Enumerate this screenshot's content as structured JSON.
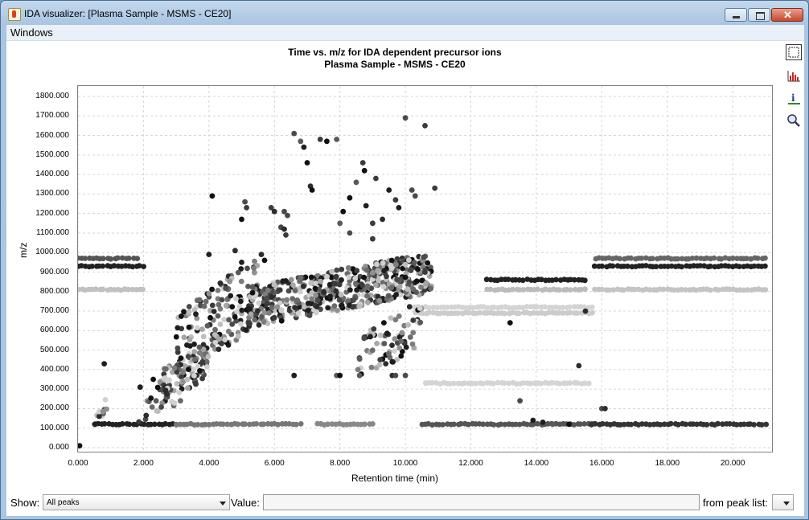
{
  "window": {
    "title": "IDA visualizer: [Plasma Sample - MSMS - CE20]",
    "controls": [
      "minimize",
      "maximize",
      "close"
    ]
  },
  "menu": {
    "items": [
      "Windows"
    ]
  },
  "chart": {
    "title_line1": "Time vs. m/z for IDA dependent precursor ions",
    "title_line2": "Plasma Sample - MSMS - CE20"
  },
  "toolbar": {
    "icons": [
      "select-rectangle-icon",
      "histogram-icon",
      "info-icon",
      "zoom-icon"
    ]
  },
  "bottom": {
    "show_label": "Show:",
    "show_value": "All peaks",
    "value_label": "Value:",
    "value_text": "",
    "from_label": "from peak list:",
    "from_value": ""
  },
  "chart_data": {
    "type": "scatter",
    "title": "Time vs. m/z for IDA dependent precursor ions",
    "subtitle": "Plasma Sample - MSMS - CE20",
    "xlabel": "Retention time (min)",
    "ylabel": "m/z",
    "xlim": [
      0,
      21.2
    ],
    "ylim": [
      0,
      1800
    ],
    "grid": true,
    "xticks": [
      "0.000",
      "2.000",
      "4.000",
      "6.000",
      "8.000",
      "10.000",
      "12.000",
      "14.000",
      "16.000",
      "18.000",
      "20.000"
    ],
    "yticks": [
      "0.000",
      "100.000",
      "200.000",
      "300.000",
      "400.000",
      "500.000",
      "600.000",
      "700.000",
      "800.000",
      "900.000",
      "1000.000",
      "1100.000",
      "1200.000",
      "1300.000",
      "1400.000",
      "1500.000",
      "1600.000",
      "1700.000",
      "1800.000"
    ],
    "bands": [
      {
        "x": [
          0.5,
          3.0
        ],
        "y": 120,
        "shade": "#222222"
      },
      {
        "x": [
          3.0,
          6.8
        ],
        "y": 120,
        "shade": "#777777"
      },
      {
        "x": [
          7.3,
          9.0
        ],
        "y": 120,
        "shade": "#888888"
      },
      {
        "x": [
          10.5,
          15.7
        ],
        "y": 120,
        "shade": "#555555"
      },
      {
        "x": [
          15.7,
          21.0
        ],
        "y": 120,
        "shade": "#333333"
      },
      {
        "x": [
          10.3,
          15.7
        ],
        "y": 690,
        "shade": "#cccccc"
      },
      {
        "x": [
          10.3,
          15.7
        ],
        "y": 720,
        "shade": "#d4d4d4"
      },
      {
        "x": [
          10.6,
          15.6
        ],
        "y": 330,
        "shade": "#d4d4d4"
      },
      {
        "x": [
          15.8,
          21.0
        ],
        "y": 930,
        "shade": "#222222"
      },
      {
        "x": [
          15.8,
          21.0
        ],
        "y": 970,
        "shade": "#666666"
      },
      {
        "x": [
          15.8,
          21.0
        ],
        "y": 810,
        "shade": "#c4c4c4"
      },
      {
        "x": [
          0.0,
          2.0
        ],
        "y": 810,
        "shade": "#c0c0c0"
      },
      {
        "x": [
          0.0,
          2.0
        ],
        "y": 930,
        "shade": "#222222"
      },
      {
        "x": [
          0.0,
          1.8
        ],
        "y": 970,
        "shade": "#555555"
      },
      {
        "x": [
          12.5,
          15.5
        ],
        "y": 860,
        "shade": "#222222"
      },
      {
        "x": [
          12.5,
          15.5
        ],
        "y": 810,
        "shade": "#bbbbbb"
      }
    ],
    "clusters": [
      {
        "x": [
          5.2,
          10.8
        ],
        "y": [
          600,
          950
        ],
        "n": 520
      },
      {
        "x": [
          3.0,
          5.5
        ],
        "y": [
          300,
          900
        ],
        "n": 160
      },
      {
        "x": [
          2.5,
          4.0
        ],
        "y": [
          200,
          500
        ],
        "n": 90
      },
      {
        "x": [
          8.5,
          10.5
        ],
        "y": [
          300,
          700
        ],
        "n": 70
      },
      {
        "x": [
          1.8,
          3.2
        ],
        "y": [
          100,
          350
        ],
        "n": 20
      },
      {
        "x": [
          0.5,
          0.9
        ],
        "y": [
          100,
          240
        ],
        "n": 12
      }
    ],
    "points": [
      [
        6.6,
        1610
      ],
      [
        6.8,
        1570
      ],
      [
        6.9,
        1540
      ],
      [
        7.0,
        1460
      ],
      [
        7.4,
        1580
      ],
      [
        7.6,
        1570
      ],
      [
        7.9,
        1580
      ],
      [
        7.1,
        1340
      ],
      [
        7.15,
        1320
      ],
      [
        8.7,
        1460
      ],
      [
        8.75,
        1420
      ],
      [
        9.1,
        1380
      ],
      [
        9.5,
        1320
      ],
      [
        8.5,
        1360
      ],
      [
        8.3,
        1280
      ],
      [
        8.8,
        1240
      ],
      [
        9.3,
        1170
      ],
      [
        9.0,
        1150
      ],
      [
        8.1,
        1210
      ],
      [
        8.0,
        1150
      ],
      [
        8.3,
        1100
      ],
      [
        9.0,
        1070
      ],
      [
        9.7,
        1270
      ],
      [
        9.8,
        1230
      ],
      [
        10.0,
        1690
      ],
      [
        10.2,
        1320
      ],
      [
        10.3,
        1290
      ],
      [
        10.6,
        1650
      ],
      [
        10.9,
        1330
      ],
      [
        4.1,
        1290
      ],
      [
        5.1,
        1260
      ],
      [
        5.15,
        1230
      ],
      [
        5.0,
        1170
      ],
      [
        5.9,
        1230
      ],
      [
        6.0,
        1210
      ],
      [
        6.3,
        1210
      ],
      [
        6.4,
        1190
      ],
      [
        6.2,
        1130
      ],
      [
        6.3,
        1120
      ],
      [
        6.35,
        1090
      ],
      [
        4.0,
        990
      ],
      [
        4.8,
        1010
      ],
      [
        5.0,
        950
      ],
      [
        5.6,
        990
      ],
      [
        5.7,
        960
      ],
      [
        9.4,
        430
      ],
      [
        9.6,
        440
      ],
      [
        7.9,
        370
      ],
      [
        8.0,
        370
      ],
      [
        8.6,
        370
      ],
      [
        9.6,
        370
      ],
      [
        9.7,
        370
      ],
      [
        10.0,
        370
      ],
      [
        6.6,
        370
      ],
      [
        13.5,
        240
      ],
      [
        13.9,
        140
      ],
      [
        14.2,
        130
      ],
      [
        14.5,
        120
      ],
      [
        15.0,
        120
      ],
      [
        16.0,
        200
      ],
      [
        16.1,
        200
      ],
      [
        0.8,
        430
      ],
      [
        0.05,
        10
      ],
      [
        1.9,
        310
      ],
      [
        2.3,
        350
      ],
      [
        15.3,
        420
      ],
      [
        13.2,
        640
      ],
      [
        15.5,
        700
      ]
    ]
  }
}
